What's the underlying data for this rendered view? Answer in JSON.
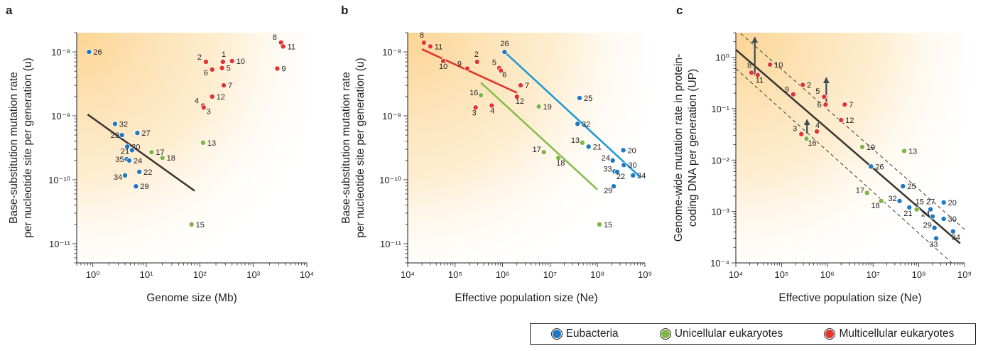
{
  "colors": {
    "eubacteria": "#1f78c1",
    "unicellular": "#7fb542",
    "multicellular": "#e4342d",
    "fit_black": "#3c3735",
    "fit_red": "#e4342d",
    "fit_blue": "#1f9ad6",
    "fit_green": "#86bd4f",
    "arrow": "#3f4a57",
    "background_warm": "#fbd28d"
  },
  "legend": {
    "items": [
      {
        "label": "Eubacteria",
        "group": "eubacteria"
      },
      {
        "label": "Unicellular eukaryotes",
        "group": "unicellular"
      },
      {
        "label": "Multicellular eukaryotes",
        "group": "multicellular"
      }
    ]
  },
  "chart_data": [
    {
      "panel": "a",
      "type": "scatter",
      "x_scale": "log",
      "y_scale": "log",
      "xlim": [
        0.5,
        10000
      ],
      "ylim": [
        5e-12,
        2e-08
      ],
      "x_ticks": [
        {
          "v": 1,
          "label": "10⁰"
        },
        {
          "v": 10,
          "label": "10¹"
        },
        {
          "v": 100,
          "label": "10²"
        },
        {
          "v": 1000,
          "label": "10³"
        },
        {
          "v": 10000,
          "label": "10⁴"
        }
      ],
      "y_ticks": [
        {
          "v": 1e-11,
          "label": "10⁻¹¹"
        },
        {
          "v": 1e-10,
          "label": "10⁻¹⁰"
        },
        {
          "v": 1e-09,
          "label": "10⁻⁹"
        },
        {
          "v": 1e-08,
          "label": "10⁻⁸"
        }
      ],
      "xlabel": "Genome size (Mb)",
      "ylabel": [
        "Base-substitution mutation rate",
        "per nucleotide site per generation (u)"
      ],
      "fits": [
        {
          "color": "fit_black",
          "x": [
            0.8,
            80
          ],
          "y": [
            1.05e-09,
            6.7e-11
          ]
        }
      ],
      "points": [
        {
          "label": "26",
          "x": 0.85,
          "y": 1e-08,
          "group": "eubacteria"
        },
        {
          "label": "32",
          "x": 2.6,
          "y": 7.5e-10,
          "group": "eubacteria"
        },
        {
          "label": "27",
          "x": 6.8,
          "y": 5.4e-10,
          "group": "eubacteria"
        },
        {
          "label": "23",
          "x": 3.5,
          "y": 5e-10,
          "group": "eubacteria"
        },
        {
          "label": "20",
          "x": 4.4,
          "y": 3.3e-10,
          "group": "eubacteria"
        },
        {
          "label": "21",
          "x": 5.4,
          "y": 2.9e-10,
          "group": "eubacteria"
        },
        {
          "label": "35",
          "x": 4.3,
          "y": 2.1e-10,
          "group": "eubacteria"
        },
        {
          "label": "24",
          "x": 4.8,
          "y": 2e-10,
          "group": "eubacteria"
        },
        {
          "label": "22",
          "x": 7.4,
          "y": 1.33e-10,
          "group": "eubacteria"
        },
        {
          "label": "34",
          "x": 4.0,
          "y": 1.17e-10,
          "group": "eubacteria"
        },
        {
          "label": "29",
          "x": 6.4,
          "y": 7.9e-11,
          "group": "eubacteria"
        },
        {
          "label": "17",
          "x": 12.5,
          "y": 2.7e-10,
          "group": "unicellular"
        },
        {
          "label": "18",
          "x": 20,
          "y": 2.2e-10,
          "group": "unicellular"
        },
        {
          "label": "13",
          "x": 115,
          "y": 3.8e-10,
          "group": "unicellular"
        },
        {
          "label": "15",
          "x": 70,
          "y": 2e-11,
          "group": "unicellular"
        },
        {
          "label": "2",
          "x": 130,
          "y": 7e-09,
          "group": "multicellular"
        },
        {
          "label": "1",
          "x": 270,
          "y": 7e-09,
          "group": "multicellular"
        },
        {
          "label": "10",
          "x": 400,
          "y": 7.2e-09,
          "group": "multicellular"
        },
        {
          "label": "6",
          "x": 170,
          "y": 5.3e-09,
          "group": "multicellular"
        },
        {
          "label": "5",
          "x": 260,
          "y": 5.6e-09,
          "group": "multicellular"
        },
        {
          "label": "7",
          "x": 280,
          "y": 3e-09,
          "group": "multicellular"
        },
        {
          "label": "12",
          "x": 170,
          "y": 2e-09,
          "group": "multicellular"
        },
        {
          "label": "4",
          "x": 115,
          "y": 1.45e-09,
          "group": "multicellular"
        },
        {
          "label": "3",
          "x": 118,
          "y": 1.35e-09,
          "group": "multicellular"
        },
        {
          "label": "8",
          "x": 3300,
          "y": 1.4e-08,
          "group": "multicellular"
        },
        {
          "label": "11",
          "x": 3600,
          "y": 1.22e-08,
          "group": "multicellular"
        },
        {
          "label": "9",
          "x": 2800,
          "y": 5.5e-09,
          "group": "multicellular"
        }
      ]
    },
    {
      "panel": "b",
      "type": "scatter",
      "x_scale": "log",
      "y_scale": "log",
      "xlim": [
        10000,
        1000000000
      ],
      "ylim": [
        5e-12,
        2e-08
      ],
      "x_ticks": [
        {
          "v": 10000,
          "label": "10⁴"
        },
        {
          "v": 100000,
          "label": "10⁵"
        },
        {
          "v": 1000000,
          "label": "10⁶"
        },
        {
          "v": 10000000,
          "label": "10⁷"
        },
        {
          "v": 100000000,
          "label": "10⁸"
        },
        {
          "v": 1000000000,
          "label": "10⁹"
        }
      ],
      "y_ticks": [
        {
          "v": 1e-11,
          "label": "10⁻¹¹"
        },
        {
          "v": 1e-10,
          "label": "10⁻¹⁰"
        },
        {
          "v": 1e-09,
          "label": "10⁻⁹"
        },
        {
          "v": 1e-08,
          "label": "10⁻⁸"
        }
      ],
      "xlabel": "Effective population size (Ne)",
      "ylabel": [
        "Base-substitution mutation rate",
        "per nucleotide site per generation (u)"
      ],
      "fits": [
        {
          "color": "fit_red",
          "x": [
            20000,
            2000000
          ],
          "y": [
            1.1e-08,
            2.3e-09
          ]
        },
        {
          "color": "fit_blue",
          "x": [
            1100000,
            800000000
          ],
          "y": [
            1e-08,
            1.1e-10
          ]
        },
        {
          "color": "fit_green",
          "x": [
            350000,
            100000000
          ],
          "y": [
            3.3e-09,
            7e-11
          ]
        }
      ],
      "points": [
        {
          "label": "8",
          "x": 22000,
          "y": 1.4e-08,
          "group": "multicellular"
        },
        {
          "label": "11",
          "x": 30000,
          "y": 1.22e-08,
          "group": "multicellular"
        },
        {
          "label": "10",
          "x": 56000,
          "y": 7.2e-09,
          "group": "multicellular"
        },
        {
          "label": "9",
          "x": 180000,
          "y": 5.5e-09,
          "group": "multicellular"
        },
        {
          "label": "2",
          "x": 290000,
          "y": 7e-09,
          "group": "multicellular"
        },
        {
          "label": "5",
          "x": 850000,
          "y": 5.6e-09,
          "group": "multicellular"
        },
        {
          "label": "6",
          "x": 920000,
          "y": 5.1e-09,
          "group": "multicellular"
        },
        {
          "label": "7",
          "x": 2400000,
          "y": 3e-09,
          "group": "multicellular"
        },
        {
          "label": "12",
          "x": 2000000,
          "y": 2e-09,
          "group": "multicellular"
        },
        {
          "label": "3",
          "x": 270000,
          "y": 1.35e-09,
          "group": "multicellular"
        },
        {
          "label": "4",
          "x": 590000,
          "y": 1.45e-09,
          "group": "multicellular"
        },
        {
          "label": "26",
          "x": 1100000,
          "y": 1e-08,
          "group": "eubacteria"
        },
        {
          "label": "25",
          "x": 42000000,
          "y": 1.9e-09,
          "group": "eubacteria"
        },
        {
          "label": "32",
          "x": 38000000,
          "y": 7.5e-10,
          "group": "eubacteria"
        },
        {
          "label": "21",
          "x": 65000000,
          "y": 3.3e-10,
          "group": "eubacteria"
        },
        {
          "label": "20",
          "x": 350000000,
          "y": 2.9e-10,
          "group": "eubacteria"
        },
        {
          "label": "24",
          "x": 210000000,
          "y": 2e-10,
          "group": "eubacteria"
        },
        {
          "label": "30",
          "x": 360000000,
          "y": 1.7e-10,
          "group": "eubacteria"
        },
        {
          "label": "33",
          "x": 230000000,
          "y": 1.35e-10,
          "group": "eubacteria"
        },
        {
          "label": "22",
          "x": 260000000,
          "y": 1.33e-10,
          "group": "eubacteria"
        },
        {
          "label": "34",
          "x": 560000000,
          "y": 1.17e-10,
          "group": "eubacteria"
        },
        {
          "label": "29",
          "x": 220000000,
          "y": 7.9e-11,
          "group": "eubacteria"
        },
        {
          "label": "16",
          "x": 350000,
          "y": 2.1e-09,
          "group": "unicellular"
        },
        {
          "label": "19",
          "x": 5800000,
          "y": 1.4e-09,
          "group": "unicellular"
        },
        {
          "label": "13",
          "x": 48000000,
          "y": 3.8e-10,
          "group": "unicellular"
        },
        {
          "label": "17",
          "x": 7400000,
          "y": 2.7e-10,
          "group": "unicellular"
        },
        {
          "label": "18",
          "x": 15000000,
          "y": 2.2e-10,
          "group": "unicellular"
        },
        {
          "label": "15",
          "x": 110000000,
          "y": 2e-11,
          "group": "unicellular"
        }
      ]
    },
    {
      "panel": "c",
      "type": "scatter",
      "x_scale": "log",
      "y_scale": "log",
      "xlim": [
        10000,
        1000000000
      ],
      "ylim": [
        0.0001,
        3
      ],
      "x_ticks": [
        {
          "v": 10000,
          "label": "10⁴"
        },
        {
          "v": 100000,
          "label": "10⁵"
        },
        {
          "v": 1000000,
          "label": "10⁶"
        },
        {
          "v": 10000000,
          "label": "10⁷"
        },
        {
          "v": 100000000,
          "label": "10⁸"
        },
        {
          "v": 1000000000,
          "label": "10⁹"
        }
      ],
      "y_ticks": [
        {
          "v": 0.0001,
          "label": "10⁻⁴"
        },
        {
          "v": 0.001,
          "label": "10⁻³"
        },
        {
          "v": 0.01,
          "label": "10⁻²"
        },
        {
          "v": 0.1,
          "label": "10⁻¹"
        },
        {
          "v": 1,
          "label": "10⁰"
        }
      ],
      "xlabel": "Effective population size (Ne)",
      "ylabel": [
        "Genome-wide mutation rate in protein-",
        "coding DNA per generation (UP)"
      ],
      "fits": [
        {
          "color": "fit_black",
          "x": [
            10000,
            800000000
          ],
          "y": [
            1.4,
            0.00024
          ]
        }
      ],
      "bounds": [
        {
          "x": [
            10000,
            1000000000
          ],
          "y": [
            3.5,
            0.00045
          ]
        },
        {
          "x": [
            10000,
            1000000000
          ],
          "y": [
            0.6,
            6e-05
          ]
        }
      ],
      "arrows": [
        {
          "x": 26000,
          "y_from": 0.45,
          "y_to": 2.2
        },
        {
          "x": 950000,
          "y_from": 0.12,
          "y_to": 0.36
        },
        {
          "x": 360000,
          "y_from": 0.033,
          "y_to": 0.055
        }
      ],
      "points": [
        {
          "label": "8",
          "x": 22000,
          "y": 0.5,
          "group": "multicellular"
        },
        {
          "label": "11",
          "x": 30000,
          "y": 0.45,
          "group": "multicellular"
        },
        {
          "label": "10",
          "x": 56000,
          "y": 0.72,
          "group": "multicellular"
        },
        {
          "label": "9",
          "x": 180000,
          "y": 0.19,
          "group": "multicellular"
        },
        {
          "label": "2",
          "x": 290000,
          "y": 0.29,
          "group": "multicellular"
        },
        {
          "label": "5",
          "x": 850000,
          "y": 0.17,
          "group": "multicellular"
        },
        {
          "label": "6",
          "x": 920000,
          "y": 0.12,
          "group": "multicellular"
        },
        {
          "label": "7",
          "x": 2400000,
          "y": 0.12,
          "group": "multicellular"
        },
        {
          "label": "12",
          "x": 2000000,
          "y": 0.06,
          "group": "multicellular"
        },
        {
          "label": "3",
          "x": 270000,
          "y": 0.032,
          "group": "multicellular"
        },
        {
          "label": "4",
          "x": 590000,
          "y": 0.036,
          "group": "multicellular"
        },
        {
          "label": "16",
          "x": 350000,
          "y": 0.026,
          "group": "unicellular"
        },
        {
          "label": "19",
          "x": 5800000,
          "y": 0.018,
          "group": "unicellular"
        },
        {
          "label": "13",
          "x": 48000000,
          "y": 0.015,
          "group": "unicellular"
        },
        {
          "label": "17",
          "x": 7400000,
          "y": 0.0023,
          "group": "unicellular"
        },
        {
          "label": "18",
          "x": 15000000,
          "y": 0.0016,
          "group": "unicellular"
        },
        {
          "label": "15",
          "x": 90000000,
          "y": 0.0011,
          "group": "unicellular"
        },
        {
          "label": "26",
          "x": 9000000,
          "y": 0.0075,
          "group": "eubacteria"
        },
        {
          "label": "25",
          "x": 45000000,
          "y": 0.0031,
          "group": "eubacteria"
        },
        {
          "label": "32",
          "x": 38000000,
          "y": 0.0016,
          "group": "eubacteria"
        },
        {
          "label": "21",
          "x": 62000000,
          "y": 0.0012,
          "group": "eubacteria"
        },
        {
          "label": "20",
          "x": 350000000,
          "y": 0.0015,
          "group": "eubacteria"
        },
        {
          "label": "27",
          "x": 180000000,
          "y": 0.0011,
          "group": "eubacteria"
        },
        {
          "label": "24",
          "x": 200000000,
          "y": 0.0008,
          "group": "eubacteria"
        },
        {
          "label": "30",
          "x": 350000000,
          "y": 0.00072,
          "group": "eubacteria"
        },
        {
          "label": "29",
          "x": 220000000,
          "y": 0.00048,
          "group": "eubacteria"
        },
        {
          "label": "34",
          "x": 560000000,
          "y": 0.00041,
          "group": "eubacteria"
        },
        {
          "label": "33",
          "x": 240000000,
          "y": 0.0003,
          "group": "eubacteria"
        }
      ]
    }
  ]
}
